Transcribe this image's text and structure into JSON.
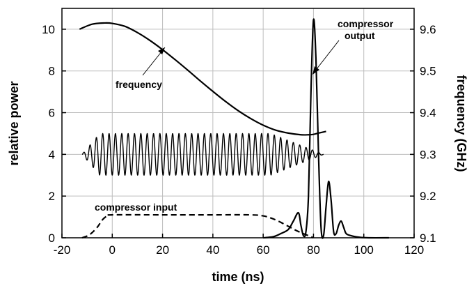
{
  "chart_data": {
    "type": "line",
    "xlabel": "time (ns)",
    "ylabel": "relative power",
    "y2label": "frequency (GHz)",
    "xlim": [
      -20,
      120
    ],
    "ylim": [
      0,
      11
    ],
    "y2lim": [
      9.1,
      9.65
    ],
    "x_ticks": [
      "-20",
      "0",
      "20",
      "40",
      "60",
      "80",
      "100",
      "120"
    ],
    "y_ticks": [
      "0",
      "2",
      "4",
      "6",
      "8",
      "10"
    ],
    "y2_ticks": [
      "9.1",
      "9.2",
      "9.3",
      "9.4",
      "9.5",
      "9.6"
    ],
    "grid": true,
    "annotations": [
      {
        "text": "frequency"
      },
      {
        "text": "compressor input"
      },
      {
        "text": "compressor"
      },
      {
        "text": "output"
      }
    ],
    "series": [
      {
        "axis": "right",
        "style": "solid",
        "x": [
          -13,
          -8,
          -3,
          0,
          5,
          10,
          15,
          20,
          25,
          30,
          35,
          40,
          45,
          50,
          55,
          60,
          65,
          70,
          75,
          78,
          80,
          82,
          85
        ],
        "y": [
          9.6,
          9.612,
          9.615,
          9.614,
          9.607,
          9.592,
          9.573,
          9.551,
          9.527,
          9.502,
          9.476,
          9.451,
          9.427,
          9.405,
          9.386,
          9.37,
          9.358,
          9.351,
          9.347,
          9.347,
          9.348,
          9.351,
          9.355
        ]
      },
      {
        "axis": "left",
        "style": "dashed",
        "x": [
          -12,
          -9,
          -6,
          -4,
          -2,
          0,
          20,
          40,
          55,
          60,
          63,
          66,
          70,
          74,
          78,
          80
        ],
        "y": [
          0,
          0.15,
          0.5,
          0.85,
          1.05,
          1.1,
          1.1,
          1.1,
          1.1,
          1.05,
          0.95,
          0.8,
          0.55,
          0.3,
          0.1,
          0
        ]
      },
      {
        "axis": "left",
        "style": "solid",
        "x": [
          60,
          64,
          67,
          70,
          72,
          74,
          75,
          76,
          77,
          78,
          79,
          80,
          81,
          82,
          83,
          84,
          85,
          86,
          87,
          88,
          89,
          90,
          91,
          92,
          93,
          95,
          98,
          102,
          110
        ],
        "y": [
          0,
          0.05,
          0.2,
          0.4,
          0.8,
          1.2,
          0.6,
          0.1,
          0.3,
          2,
          7,
          10.45,
          8.5,
          4,
          0.5,
          0.1,
          1.5,
          2.7,
          1.8,
          0.3,
          0.2,
          0.6,
          0.8,
          0.5,
          0.2,
          0.1,
          0.03,
          0,
          0
        ]
      },
      {
        "axis": "left",
        "style": "solid",
        "kind": "oscillation",
        "center": 4,
        "amplitude": 1,
        "x_start": -12,
        "x_end": 84,
        "cycles": 38
      }
    ]
  }
}
